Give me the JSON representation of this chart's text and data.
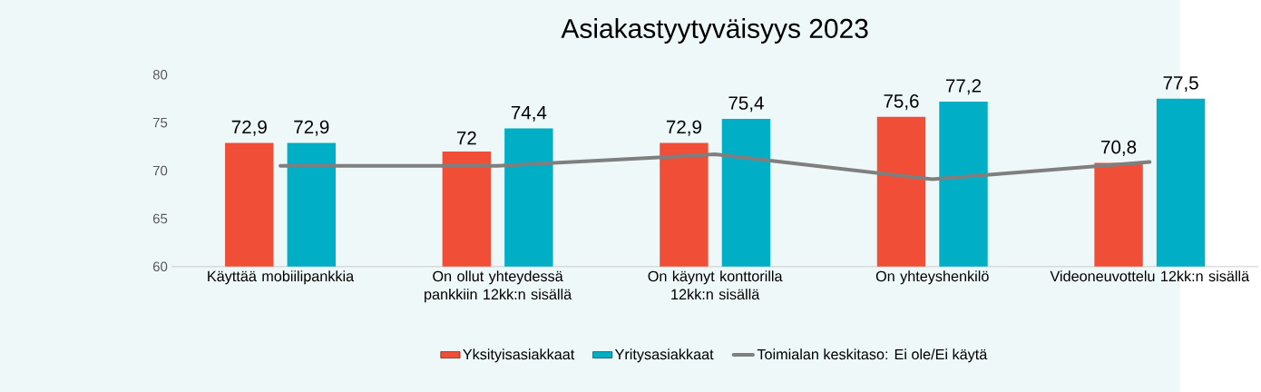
{
  "chart_data": {
    "type": "bar",
    "title": "Asiakastyytyväisyys 2023",
    "categories": [
      "Käyttää mobiilipankkia",
      "On ollut yhteydessä pankkiin 12kk:n sisällä",
      "On käynyt konttorilla 12kk:n sisällä",
      "On yhteyshenkilö",
      "Videoneuvottelu 12kk:n sisällä"
    ],
    "series": [
      {
        "name": "Yksityisasiakkaat",
        "color": "#f04e37",
        "values": [
          72.9,
          72,
          72.9,
          75.6,
          70.8
        ],
        "value_labels": [
          "72,9",
          "72",
          "72,9",
          "75,6",
          "70,8"
        ]
      },
      {
        "name": "Yritysasiakkaat",
        "color": "#00afc6",
        "values": [
          72.9,
          74.4,
          75.4,
          77.2,
          77.5
        ],
        "value_labels": [
          "72,9",
          "74,4",
          "75,4",
          "77,2",
          "77,5"
        ]
      },
      {
        "name": "Toimialan keskitaso: Ei ole/Ei käytä",
        "type": "line",
        "color": "#7f7f7f",
        "marker": "none",
        "values": [
          70.5,
          70.5,
          71.7,
          69.1,
          70.9
        ]
      }
    ],
    "ylim": [
      60,
      80
    ],
    "yticks": [
      60,
      65,
      70,
      75,
      80
    ],
    "legend": "bottom"
  }
}
